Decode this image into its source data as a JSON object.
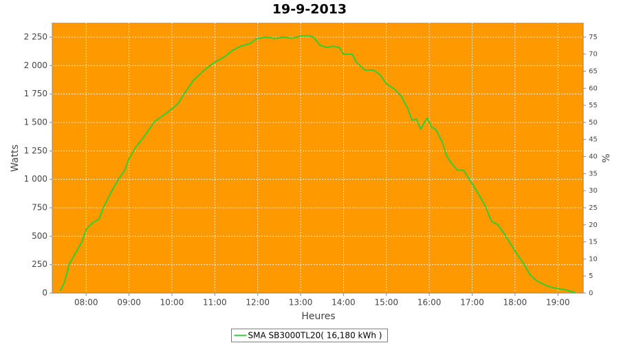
{
  "chart_data": {
    "type": "line",
    "title": "19-9-2013",
    "x_label": "Heures",
    "y_label": "Watts",
    "y2_label": "%",
    "plot_background": "#ff9900",
    "grid": true,
    "xlim": [
      7.21,
      19.59
    ],
    "xticks": [
      {
        "value": 8,
        "label": "08:00"
      },
      {
        "value": 9,
        "label": "09:00"
      },
      {
        "value": 10,
        "label": "10:00"
      },
      {
        "value": 11,
        "label": "11:00"
      },
      {
        "value": 12,
        "label": "12:00"
      },
      {
        "value": 13,
        "label": "13:00"
      },
      {
        "value": 14,
        "label": "14:00"
      },
      {
        "value": 15,
        "label": "15:00"
      },
      {
        "value": 16,
        "label": "16:00"
      },
      {
        "value": 17,
        "label": "17:00"
      },
      {
        "value": 18,
        "label": "18:00"
      },
      {
        "value": 19,
        "label": "19:00"
      }
    ],
    "ylim": [
      0,
      2377
    ],
    "yticks": [
      0,
      250,
      500,
      750,
      {
        "value": 1000,
        "label": "1 000"
      },
      {
        "value": 1250,
        "label": "1 250"
      },
      {
        "value": 1500,
        "label": "1 500"
      },
      {
        "value": 1750,
        "label": "1 750"
      },
      {
        "value": 2000,
        "label": "2 000"
      },
      {
        "value": 2250,
        "label": "2 250"
      }
    ],
    "y2lim": [
      0,
      79.2
    ],
    "y2ticks": [
      0,
      5,
      10,
      15,
      20,
      25,
      30,
      35,
      40,
      45,
      50,
      55,
      60,
      65,
      70,
      75
    ],
    "legend": "bottom",
    "x": [
      7.4,
      7.5,
      7.6,
      7.75,
      7.9,
      8.0,
      8.15,
      8.3,
      8.4,
      8.6,
      8.75,
      8.9,
      9.0,
      9.15,
      9.3,
      9.45,
      9.6,
      9.75,
      9.9,
      10.0,
      10.15,
      10.3,
      10.5,
      10.7,
      10.85,
      11.0,
      11.2,
      11.4,
      11.6,
      11.8,
      12.0,
      12.2,
      12.4,
      12.6,
      12.8,
      12.9,
      13.0,
      13.2,
      13.3,
      13.45,
      13.6,
      13.75,
      13.9,
      14.0,
      14.2,
      14.3,
      14.5,
      14.7,
      14.85,
      15.0,
      15.2,
      15.35,
      15.5,
      15.6,
      15.7,
      15.8,
      15.9,
      15.95,
      16.05,
      16.15,
      16.3,
      16.4,
      16.5,
      16.65,
      16.8,
      16.9,
      17.0,
      17.15,
      17.3,
      17.45,
      17.6,
      17.75,
      17.9,
      18.05,
      18.2,
      18.35,
      18.5,
      18.7,
      18.85,
      19.0,
      19.15,
      19.3,
      19.4
    ],
    "series": [
      {
        "name": "SMA SB3000TL20( 16,180 kWh )",
        "color": "#2fcf2f",
        "values": [
          20,
          100,
          250,
          350,
          450,
          560,
          620,
          650,
          750,
          900,
          1000,
          1080,
          1180,
          1280,
          1350,
          1430,
          1510,
          1550,
          1590,
          1620,
          1670,
          1760,
          1870,
          1940,
          1990,
          2030,
          2070,
          2130,
          2170,
          2190,
          2240,
          2250,
          2240,
          2250,
          2240,
          2250,
          2260,
          2260,
          2250,
          2180,
          2160,
          2170,
          2160,
          2100,
          2100,
          2030,
          1960,
          1960,
          1920,
          1840,
          1790,
          1730,
          1620,
          1520,
          1530,
          1440,
          1510,
          1540,
          1460,
          1440,
          1330,
          1210,
          1150,
          1080,
          1080,
          1020,
          960,
          870,
          770,
          630,
          600,
          520,
          430,
          340,
          260,
          160,
          110,
          70,
          50,
          40,
          30,
          15,
          5
        ]
      }
    ]
  }
}
